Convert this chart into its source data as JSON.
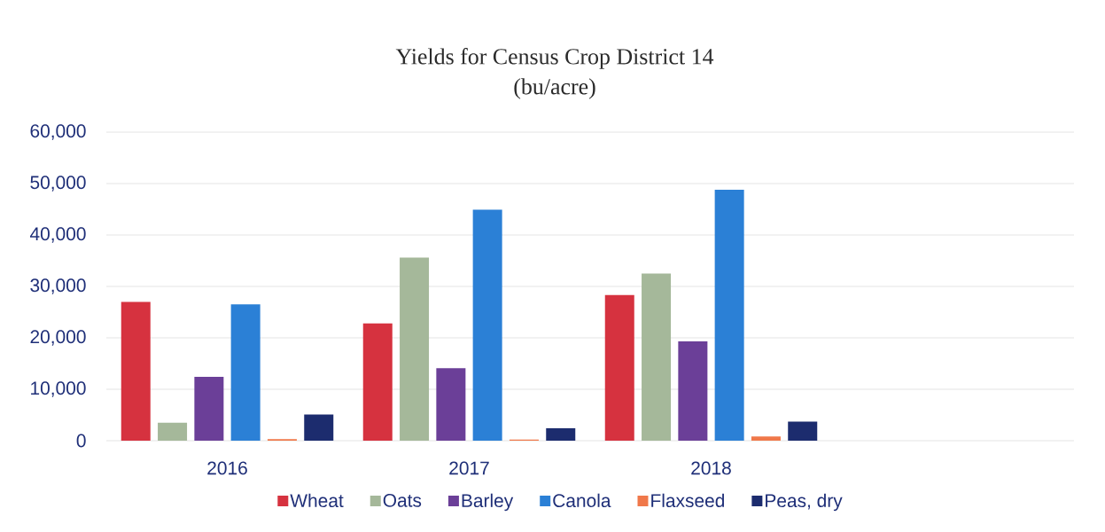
{
  "chart_data": {
    "type": "bar",
    "title": "Yields for Census Crop District 14",
    "subtitle": "(bu/acre)",
    "categories": [
      "2016",
      "2017",
      "2018",
      null
    ],
    "series": [
      {
        "name": "Wheat",
        "color": "#d6323f",
        "values": [
          27000,
          22800,
          28300,
          null
        ]
      },
      {
        "name": "Oats",
        "color": "#a5b89a",
        "values": [
          3500,
          35600,
          32500,
          null
        ]
      },
      {
        "name": "Barley",
        "color": "#6b3f98",
        "values": [
          12400,
          14100,
          19300,
          null
        ]
      },
      {
        "name": "Canola",
        "color": "#2b80d6",
        "values": [
          26500,
          44900,
          48800,
          null
        ]
      },
      {
        "name": "Flaxseed",
        "color": "#f0784a",
        "values": [
          300,
          200,
          800,
          null
        ]
      },
      {
        "name": "Peas, dry",
        "color": "#1c2c6e",
        "values": [
          5100,
          2400,
          3700,
          null
        ]
      }
    ],
    "ylim": [
      0,
      60000
    ],
    "yticks": [
      0,
      {
        "value": 10000,
        "label": "10,000"
      },
      {
        "value": 20000,
        "label": "20,000"
      },
      {
        "value": 30000,
        "label": "30,000"
      },
      {
        "value": 40000,
        "label": "40,000"
      },
      {
        "value": 50000,
        "label": "50,000"
      },
      {
        "value": 60000,
        "label": "60,000"
      }
    ],
    "grid": "y",
    "legend": "bottom"
  }
}
